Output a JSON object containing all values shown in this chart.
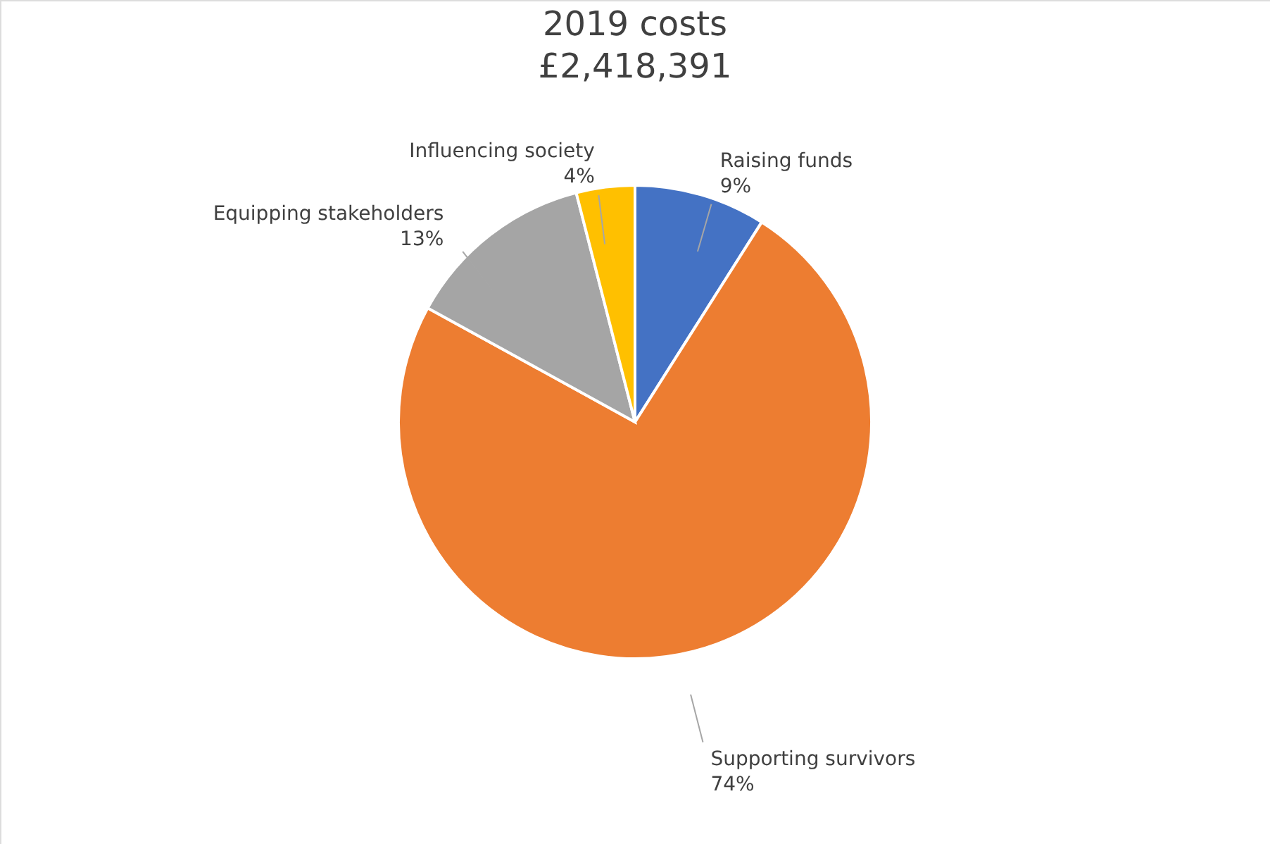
{
  "chart_data": {
    "type": "pie",
    "title": "2019 costs",
    "subtitle": "£2,418,391",
    "categories": [
      "Raising funds",
      "Supporting survivors",
      "Equipping stakeholders",
      "Influencing society"
    ],
    "values": [
      9,
      74,
      13,
      4
    ],
    "value_labels": [
      "9%",
      "74%",
      "13%",
      "4%"
    ],
    "colors": [
      "#4472c4",
      "#ed7d31",
      "#a5a5a5",
      "#ffc000"
    ]
  }
}
